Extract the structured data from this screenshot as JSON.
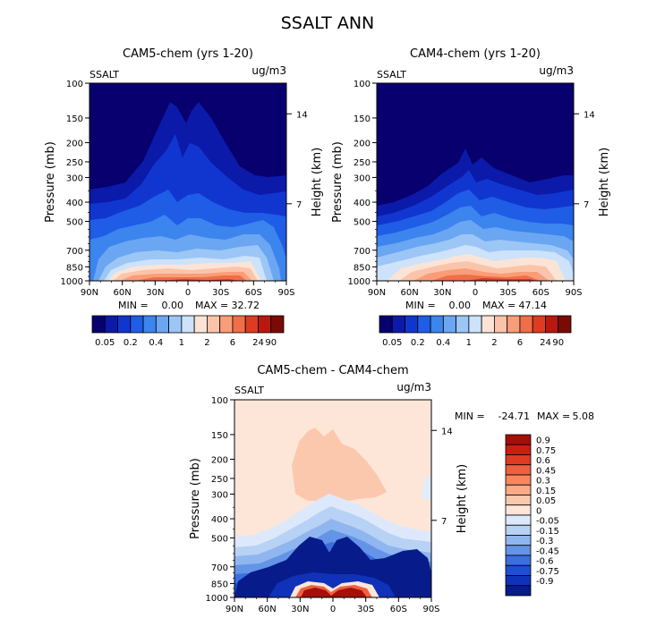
{
  "page_title": "SSALT ANN",
  "chart_data": [
    {
      "type": "heatmap",
      "title": "CAM5-chem (yrs 1-20)",
      "variable_label": "SSALT",
      "units_label": "ug/m3",
      "ylabel": "Pressure (mb)",
      "y2label": "Height (km)",
      "xlabel": "",
      "x_ticks": [
        "90N",
        "60N",
        "30N",
        "0",
        "30S",
        "60S",
        "90S"
      ],
      "y_ticks": [
        "100",
        "150",
        "200",
        "250",
        "300",
        "400",
        "500",
        "700",
        "850",
        "1000"
      ],
      "y_pressure_values": [
        100,
        150,
        200,
        250,
        300,
        400,
        500,
        700,
        850,
        1000
      ],
      "y2_ticks": [
        "14",
        "7"
      ],
      "ylim": [
        1000,
        100
      ],
      "xlim": [
        90,
        -90
      ],
      "stats": {
        "min_label": "MIN =",
        "min": "0.00",
        "max_label": "MAX =",
        "max": "32.72"
      },
      "colorbar": {
        "orientation": "horizontal",
        "labels": [
          "0.05",
          "0.2",
          "0.4",
          "1",
          "2",
          "6",
          "24",
          "90"
        ],
        "colors": [
          "#08006e",
          "#0b1aa8",
          "#1136d0",
          "#1f5de6",
          "#3c84ee",
          "#6aa6f2",
          "#9cc6f6",
          "#cde2fb",
          "#fbe4d6",
          "#fbc4aa",
          "#f99d78",
          "#f06e48",
          "#dd3c22",
          "#b8180e",
          "#7a0a05"
        ]
      }
    },
    {
      "type": "heatmap",
      "title": "CAM4-chem (yrs 1-20)",
      "variable_label": "SSALT",
      "units_label": "ug/m3",
      "ylabel": "Pressure (mb)",
      "y2label": "Height (km)",
      "xlabel": "",
      "x_ticks": [
        "90N",
        "60N",
        "30N",
        "0",
        "30S",
        "60S",
        "90S"
      ],
      "y_ticks": [
        "100",
        "150",
        "200",
        "250",
        "300",
        "400",
        "500",
        "700",
        "850",
        "1000"
      ],
      "y_pressure_values": [
        100,
        150,
        200,
        250,
        300,
        400,
        500,
        700,
        850,
        1000
      ],
      "y2_ticks": [
        "14",
        "7"
      ],
      "ylim": [
        1000,
        100
      ],
      "xlim": [
        90,
        -90
      ],
      "stats": {
        "min_label": "MIN =",
        "min": "0.00",
        "max_label": "MAX =",
        "max": "47.14"
      },
      "colorbar": {
        "orientation": "horizontal",
        "labels": [
          "0.05",
          "0.2",
          "0.4",
          "1",
          "2",
          "6",
          "24",
          "90"
        ],
        "colors": [
          "#08006e",
          "#0b1aa8",
          "#1136d0",
          "#1f5de6",
          "#3c84ee",
          "#6aa6f2",
          "#9cc6f6",
          "#cde2fb",
          "#fbe4d6",
          "#fbc4aa",
          "#f99d78",
          "#f06e48",
          "#dd3c22",
          "#b8180e",
          "#7a0a05"
        ]
      }
    },
    {
      "type": "heatmap",
      "title": "CAM5-chem - CAM4-chem",
      "variable_label": "SSALT",
      "units_label": "ug/m3",
      "ylabel": "Pressure (mb)",
      "y2label": "Height (km)",
      "xlabel": "",
      "x_ticks": [
        "90N",
        "60N",
        "30N",
        "0",
        "30S",
        "60S",
        "90S"
      ],
      "y_ticks": [
        "100",
        "150",
        "200",
        "250",
        "300",
        "400",
        "500",
        "700",
        "850",
        "1000"
      ],
      "y_pressure_values": [
        100,
        150,
        200,
        250,
        300,
        400,
        500,
        700,
        850,
        1000
      ],
      "y2_ticks": [
        "14",
        "7"
      ],
      "ylim": [
        1000,
        100
      ],
      "xlim": [
        90,
        -90
      ],
      "stats": {
        "min_label": "MIN =",
        "min": "-24.71",
        "max_label": "MAX =",
        "max": "5.08"
      },
      "colorbar": {
        "orientation": "vertical",
        "labels": [
          "0.9",
          "0.75",
          "0.6",
          "0.45",
          "0.3",
          "0.15",
          "0.05",
          "0",
          "-0.05",
          "-0.15",
          "-0.3",
          "-0.45",
          "-0.6",
          "-0.75",
          "-0.9"
        ],
        "colors": [
          "#a50f0a",
          "#c81f12",
          "#dd3c22",
          "#ee6040",
          "#f7875f",
          "#fbaa85",
          "#fcc8ad",
          "#fde6d8",
          "#dde9fb",
          "#b8d2f5",
          "#8fb6ef",
          "#6494e8",
          "#3b6fe0",
          "#1c4fd6",
          "#0f32b8",
          "#071c8a"
        ]
      }
    }
  ]
}
